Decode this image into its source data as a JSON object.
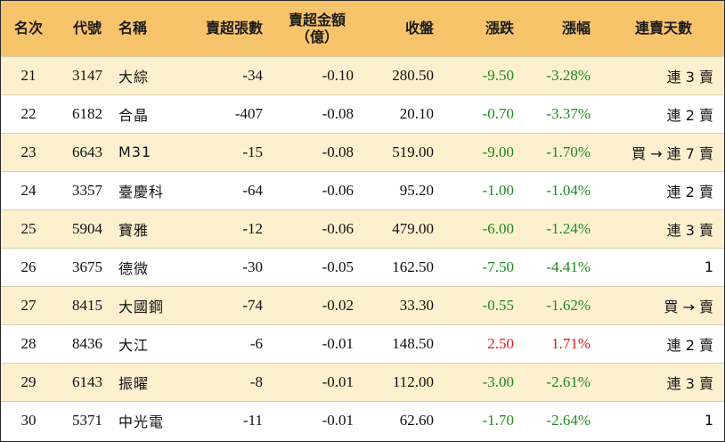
{
  "colors": {
    "header_bg": "#f7c46c",
    "odd_row_bg": "#fdf0cf",
    "even_row_bg": "#ffffff",
    "down": "#1e8a1e",
    "up": "#e0191e"
  },
  "headers": {
    "rank": "名次",
    "code": "代號",
    "name": "名稱",
    "sell_lots": "賣超張數",
    "sell_amount_line1": "賣超金額",
    "sell_amount_line2": "（億）",
    "close": "收盤",
    "change": "漲跌",
    "change_pct": "漲幅",
    "streak": "連賣天數"
  },
  "rows": [
    {
      "rank": "21",
      "code": "3147",
      "name": "大綜",
      "sell_lots": "-34",
      "sell_amount": "-0.10",
      "close": "280.50",
      "change": "-9.50",
      "change_pct": "-3.28%",
      "streak": "連 3 賣",
      "trend": "down"
    },
    {
      "rank": "22",
      "code": "6182",
      "name": "合晶",
      "sell_lots": "-407",
      "sell_amount": "-0.08",
      "close": "20.10",
      "change": "-0.70",
      "change_pct": "-3.37%",
      "streak": "連 2 賣",
      "trend": "down"
    },
    {
      "rank": "23",
      "code": "6643",
      "name": "M31",
      "sell_lots": "-15",
      "sell_amount": "-0.08",
      "close": "519.00",
      "change": "-9.00",
      "change_pct": "-1.70%",
      "streak": "買 → 連 7 賣",
      "trend": "down"
    },
    {
      "rank": "24",
      "code": "3357",
      "name": "臺慶科",
      "sell_lots": "-64",
      "sell_amount": "-0.06",
      "close": "95.20",
      "change": "-1.00",
      "change_pct": "-1.04%",
      "streak": "連 2 賣",
      "trend": "down"
    },
    {
      "rank": "25",
      "code": "5904",
      "name": "寶雅",
      "sell_lots": "-12",
      "sell_amount": "-0.06",
      "close": "479.00",
      "change": "-6.00",
      "change_pct": "-1.24%",
      "streak": "連 3 賣",
      "trend": "down"
    },
    {
      "rank": "26",
      "code": "3675",
      "name": "德微",
      "sell_lots": "-30",
      "sell_amount": "-0.05",
      "close": "162.50",
      "change": "-7.50",
      "change_pct": "-4.41%",
      "streak": "1",
      "trend": "down"
    },
    {
      "rank": "27",
      "code": "8415",
      "name": "大國鋼",
      "sell_lots": "-74",
      "sell_amount": "-0.02",
      "close": "33.30",
      "change": "-0.55",
      "change_pct": "-1.62%",
      "streak": "買 → 賣",
      "trend": "down"
    },
    {
      "rank": "28",
      "code": "8436",
      "name": "大江",
      "sell_lots": "-6",
      "sell_amount": "-0.01",
      "close": "148.50",
      "change": "2.50",
      "change_pct": "1.71%",
      "streak": "連 2 賣",
      "trend": "up"
    },
    {
      "rank": "29",
      "code": "6143",
      "name": "振曜",
      "sell_lots": "-8",
      "sell_amount": "-0.01",
      "close": "112.00",
      "change": "-3.00",
      "change_pct": "-2.61%",
      "streak": "連 3 賣",
      "trend": "down"
    },
    {
      "rank": "30",
      "code": "5371",
      "name": "中光電",
      "sell_lots": "-11",
      "sell_amount": "-0.01",
      "close": "62.60",
      "change": "-1.70",
      "change_pct": "-2.64%",
      "streak": "1",
      "trend": "down"
    }
  ]
}
